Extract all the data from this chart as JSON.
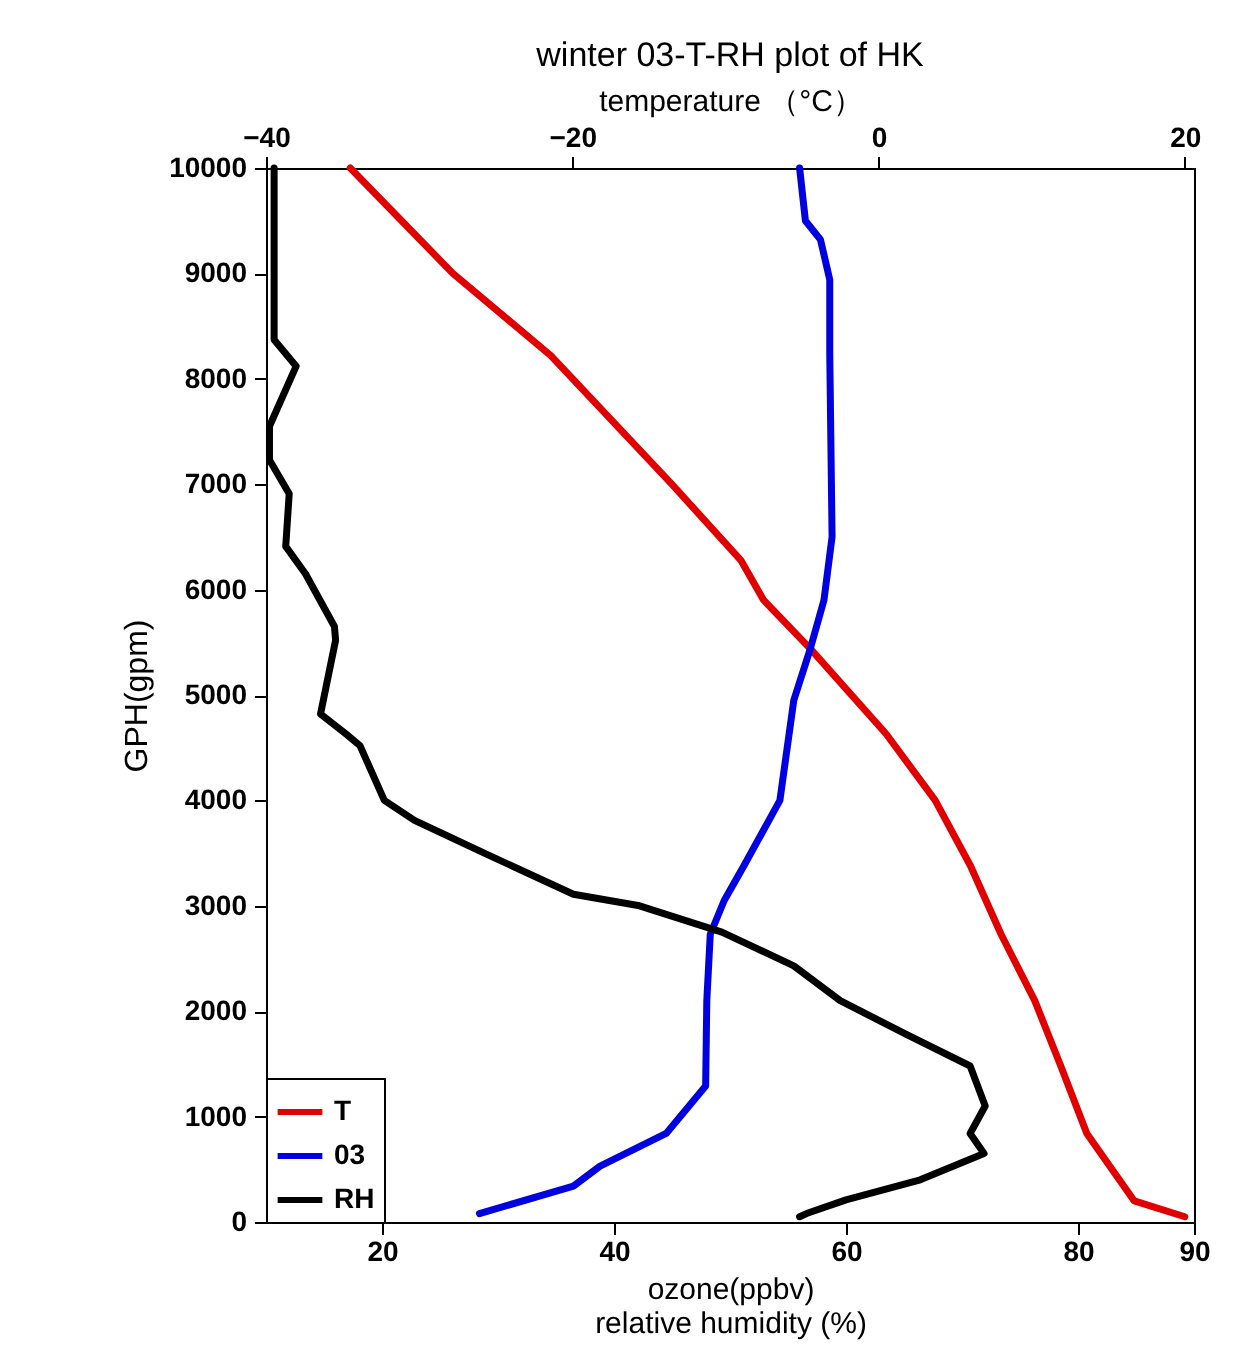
{
  "chart_data": {
    "type": "line",
    "title": "winter 03-T-RH plot of HK",
    "xlabel": "ozone(ppbv)\nrelative humidity (%)",
    "x2label": "temperature （°C）",
    "ylabel": "GPH(gpm)",
    "xlim": [
      10,
      90
    ],
    "xticks": [
      20,
      40,
      60,
      80,
      90
    ],
    "x2lim": [
      -40,
      20.6
    ],
    "x2ticks": [
      -40,
      -20,
      0,
      20
    ],
    "ylim": [
      0,
      10000
    ],
    "yticks": [
      0,
      1000,
      2000,
      3000,
      4000,
      5000,
      6000,
      7000,
      8000,
      9000,
      10000
    ],
    "grid": false,
    "legend": "bottom left",
    "marker": "none",
    "line_style": "solid",
    "series": [
      {
        "name": "T",
        "color": "#e00000",
        "axis": "x2",
        "x": [
          -34.5,
          -27.8,
          -21.4,
          -13.5,
          -9,
          -7.5,
          -4.4,
          0.5,
          3.7,
          6.0,
          8.0,
          10.2,
          11.9,
          13.6,
          16.7,
          20
        ],
        "values": [
          10000,
          9000,
          8220,
          7000,
          6280,
          5900,
          5430,
          4630,
          4000,
          3380,
          2730,
          2100,
          1480,
          840,
          200,
          50
        ]
      },
      {
        "name": "03",
        "color": "#0000e0",
        "x": [
          56.0,
          56.5,
          57.8,
          58.6,
          58.6,
          58.8,
          58.1,
          56.9,
          55.5,
          54.3,
          51.2,
          49.5,
          48.3,
          48.0,
          47.9,
          44.5,
          38.8,
          36.5,
          28.4
        ],
        "values": [
          10000,
          9500,
          9320,
          8940,
          8240,
          6500,
          5900,
          5430,
          4950,
          4000,
          3380,
          3050,
          2730,
          2100,
          1290,
          840,
          530,
          340,
          80
        ]
      },
      {
        "name": "RH",
        "color": "#000000",
        "x": [
          10.7,
          10.7,
          10.7,
          12.6,
          10.3,
          10.3,
          12.0,
          11.7,
          13.4,
          15.9,
          16.0,
          14.7,
          16.9,
          18.1,
          20.2,
          22.8,
          29.0,
          36.5,
          42.2,
          49.3,
          55.5,
          59.5,
          65.2,
          70.7,
          72.0,
          70.7,
          71.9,
          66.4,
          60.0,
          56.6,
          56.0
        ],
        "values": [
          10000,
          9000,
          8370,
          8120,
          7550,
          7230,
          6910,
          6410,
          6150,
          5650,
          5520,
          4820,
          4630,
          4520,
          4000,
          3810,
          3490,
          3110,
          3000,
          2750,
          2430,
          2100,
          1780,
          1480,
          1100,
          840,
          650,
          400,
          210,
          80,
          50
        ]
      }
    ]
  }
}
